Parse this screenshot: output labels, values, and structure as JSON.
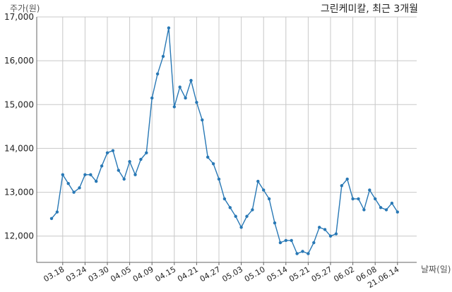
{
  "chart_data": {
    "type": "line",
    "title": "그린케미칼, 최근 3개월",
    "ylabel": "주가(원)",
    "xlabel": "날짜(일)",
    "ylim": [
      11400,
      17000
    ],
    "yticks": [
      12000,
      13000,
      14000,
      15000,
      16000,
      17000
    ],
    "ytick_labels": [
      "12,000",
      "13,000",
      "14,000",
      "15,000",
      "16,000",
      "17,000"
    ],
    "xtick_labels": [
      "03.18",
      "03.24",
      "03.30",
      "04.05",
      "04.09",
      "04.15",
      "04.21",
      "04.27",
      "05.03",
      "05.10",
      "05.14",
      "05.21",
      "05.27",
      "06.02",
      "06.08",
      "21.06.14"
    ],
    "xtick_index": [
      2,
      6,
      10,
      14,
      18,
      22,
      26,
      30,
      34,
      38,
      42,
      46,
      50,
      54,
      58,
      62
    ],
    "grid": true,
    "color": "#2878b5",
    "series": [
      {
        "values": [
          12400,
          12550,
          13400,
          13200,
          13000,
          13100,
          13400,
          13400,
          13250,
          13600,
          13900,
          13950,
          13500,
          13300,
          13700,
          13400,
          13750,
          13900,
          15150,
          15700,
          16100,
          16750,
          14950,
          15400,
          15150,
          15550,
          15050,
          14650,
          13800,
          13650,
          13300,
          12850,
          12650,
          12450,
          12200,
          12450,
          12600,
          13250,
          13050,
          12850,
          12300,
          11850,
          11900,
          11900,
          11600,
          11650,
          11600,
          11850,
          12200,
          12150,
          12000,
          12050,
          13150,
          13300,
          12850,
          12850,
          12600,
          13050,
          12850,
          12650,
          12600,
          12750,
          12550
        ]
      }
    ]
  }
}
